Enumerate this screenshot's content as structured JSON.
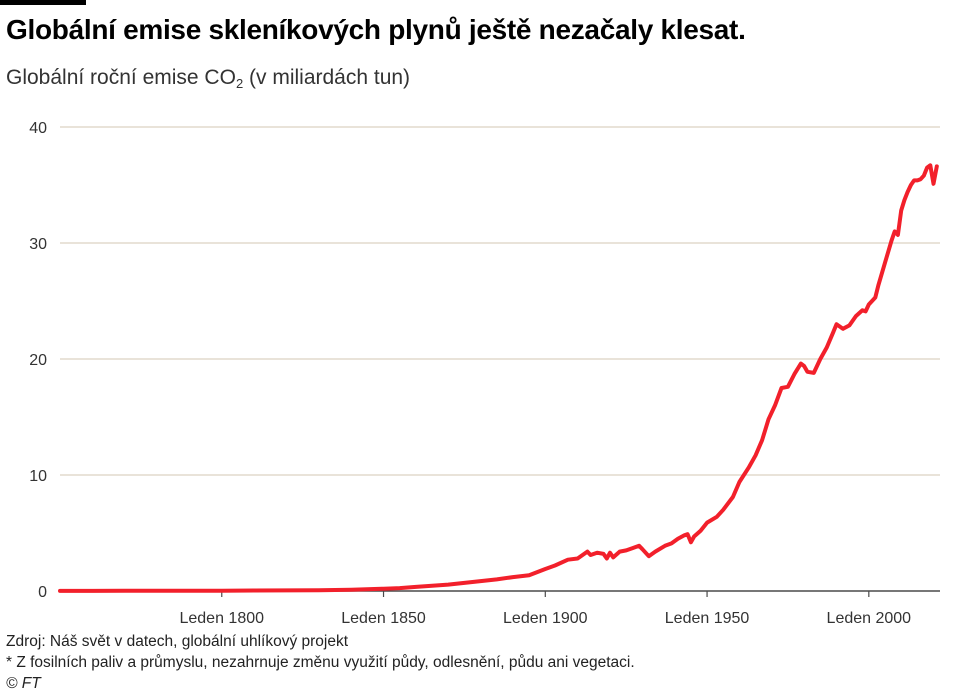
{
  "chart_data": {
    "type": "line",
    "title": "Globální emise skleníkových plynů ještě nezačaly klesat.",
    "subtitle_main": "Globální roční emise CO",
    "subtitle_sub": "2",
    "subtitle_rest": " (v miliardách tun)",
    "xlabel": "",
    "ylabel": "",
    "xlim": [
      1750,
      2022
    ],
    "ylim": [
      0,
      40
    ],
    "y_ticks": [
      0,
      10,
      20,
      30,
      40
    ],
    "x_ticks": [
      {
        "value": 1800,
        "label": "Leden 1800"
      },
      {
        "value": 1850,
        "label": "Leden 1850"
      },
      {
        "value": 1900,
        "label": "Leden 1900"
      },
      {
        "value": 1950,
        "label": "Leden 1950"
      },
      {
        "value": 2000,
        "label": "Leden 2000"
      }
    ],
    "grid": true,
    "legend": "none",
    "series": [
      {
        "color": "#f2202b",
        "points": [
          [
            1750,
            0.01
          ],
          [
            1760,
            0.01
          ],
          [
            1770,
            0.02
          ],
          [
            1780,
            0.02
          ],
          [
            1790,
            0.03
          ],
          [
            1800,
            0.03
          ],
          [
            1810,
            0.04
          ],
          [
            1820,
            0.05
          ],
          [
            1830,
            0.07
          ],
          [
            1840,
            0.1
          ],
          [
            1850,
            0.2
          ],
          [
            1855,
            0.25
          ],
          [
            1860,
            0.35
          ],
          [
            1865,
            0.45
          ],
          [
            1870,
            0.55
          ],
          [
            1875,
            0.7
          ],
          [
            1880,
            0.85
          ],
          [
            1885,
            1.0
          ],
          [
            1890,
            1.2
          ],
          [
            1895,
            1.35
          ],
          [
            1900,
            1.9
          ],
          [
            1903,
            2.2
          ],
          [
            1907,
            2.7
          ],
          [
            1910,
            2.8
          ],
          [
            1913,
            3.4
          ],
          [
            1914,
            3.1
          ],
          [
            1916,
            3.3
          ],
          [
            1918,
            3.2
          ],
          [
            1919,
            2.8
          ],
          [
            1920,
            3.3
          ],
          [
            1921,
            2.9
          ],
          [
            1923,
            3.4
          ],
          [
            1925,
            3.5
          ],
          [
            1927,
            3.7
          ],
          [
            1929,
            3.9
          ],
          [
            1930,
            3.6
          ],
          [
            1932,
            3.0
          ],
          [
            1934,
            3.4
          ],
          [
            1937,
            3.9
          ],
          [
            1939,
            4.1
          ],
          [
            1941,
            4.5
          ],
          [
            1943,
            4.8
          ],
          [
            1944,
            4.9
          ],
          [
            1945,
            4.2
          ],
          [
            1946,
            4.7
          ],
          [
            1948,
            5.2
          ],
          [
            1950,
            5.9
          ],
          [
            1953,
            6.4
          ],
          [
            1955,
            7.0
          ],
          [
            1958,
            8.1
          ],
          [
            1960,
            9.4
          ],
          [
            1963,
            10.7
          ],
          [
            1965,
            11.7
          ],
          [
            1967,
            13.0
          ],
          [
            1969,
            14.8
          ],
          [
            1971,
            16.0
          ],
          [
            1973,
            17.5
          ],
          [
            1975,
            17.6
          ],
          [
            1977,
            18.7
          ],
          [
            1979,
            19.6
          ],
          [
            1980,
            19.4
          ],
          [
            1981,
            18.9
          ],
          [
            1983,
            18.8
          ],
          [
            1985,
            20.0
          ],
          [
            1987,
            21.0
          ],
          [
            1989,
            22.3
          ],
          [
            1990,
            23.0
          ],
          [
            1991,
            22.8
          ],
          [
            1992,
            22.6
          ],
          [
            1994,
            22.9
          ],
          [
            1996,
            23.7
          ],
          [
            1998,
            24.2
          ],
          [
            1999,
            24.1
          ],
          [
            2000,
            24.7
          ],
          [
            2002,
            25.3
          ],
          [
            2003,
            26.4
          ],
          [
            2005,
            28.3
          ],
          [
            2007,
            30.2
          ],
          [
            2008,
            31.0
          ],
          [
            2009,
            30.7
          ],
          [
            2010,
            32.8
          ],
          [
            2011,
            33.7
          ],
          [
            2012,
            34.4
          ],
          [
            2013,
            35.0
          ],
          [
            2014,
            35.4
          ],
          [
            2015,
            35.4
          ],
          [
            2016,
            35.5
          ],
          [
            2017,
            35.8
          ],
          [
            2018,
            36.5
          ],
          [
            2019,
            36.7
          ],
          [
            2020,
            35.1
          ],
          [
            2021,
            36.6
          ]
        ]
      }
    ]
  },
  "footer": {
    "source": "Zdroj: Náš svět v datech, globální uhlíkový projekt",
    "note": "* Z fosilních paliv a průmyslu, nezahrnuje změnu využití půdy, odlesnění, půdu ani vegetaci.",
    "copyright": "© FT"
  }
}
